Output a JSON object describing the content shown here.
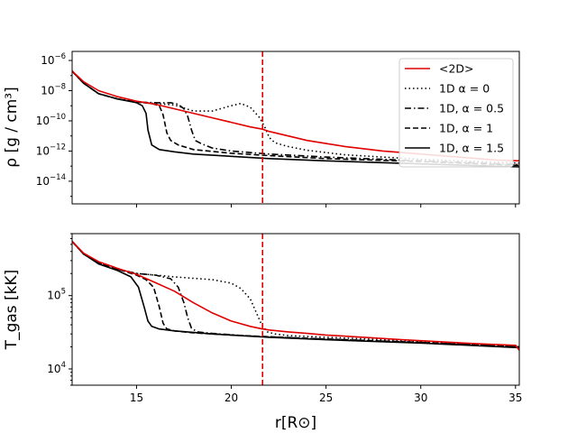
{
  "chart_data": {
    "type": "line",
    "xlabel": "r[R⊙]",
    "xlim": [
      11.6,
      35.2
    ],
    "x_ticks": [
      15,
      20,
      25,
      30,
      35
    ],
    "reference_line": {
      "x": 21.65,
      "color": "#e00000",
      "style": "dashed"
    },
    "colors": {
      "red": "#e00000",
      "black": "#000000"
    },
    "legend": {
      "placement": "top-right",
      "entries": [
        {
          "label": "<2D>",
          "color": "#e00000",
          "style": "solid"
        },
        {
          "label": "1D α = 0",
          "color": "#000000",
          "style": "dotted"
        },
        {
          "label": "1D, α = 0.5",
          "color": "#000000",
          "style": "dashdot"
        },
        {
          "label": "1D, α = 1",
          "color": "#000000",
          "style": "dashed"
        },
        {
          "label": "1D, α = 1.5",
          "color": "#000000",
          "style": "solid"
        }
      ]
    },
    "panels": [
      {
        "name": "density",
        "ylabel": "ρ [g / cm³]",
        "yscale": "log",
        "ylim_log10": [
          -15.5,
          -5.4
        ],
        "y_tick_exponents": [
          -6,
          -8,
          -10,
          -12,
          -14
        ],
        "series": [
          {
            "name": "<2D>",
            "color": "#e00000",
            "style": "solid",
            "x": [
              11.6,
              12.2,
              13,
              14,
              15,
              16,
              17,
              18,
              19,
              20,
              21,
              21.65,
              22,
              23,
              24,
              25,
              26,
              27,
              28,
              29,
              30,
              31,
              32,
              33,
              34,
              35.2
            ],
            "log10_y": [
              -6.7,
              -7.4,
              -8.0,
              -8.4,
              -8.7,
              -8.9,
              -9.2,
              -9.5,
              -9.8,
              -10.1,
              -10.4,
              -10.55,
              -10.7,
              -11.0,
              -11.3,
              -11.5,
              -11.7,
              -11.85,
              -12.0,
              -12.1,
              -12.2,
              -12.3,
              -12.4,
              -12.5,
              -12.6,
              -12.65
            ]
          },
          {
            "name": "1D α = 0",
            "color": "#000000",
            "style": "dotted",
            "x": [
              11.6,
              12.2,
              13,
              14,
              15,
              16,
              17,
              18,
              19,
              20,
              20.5,
              21,
              21.5,
              21.8,
              22,
              22.3,
              22.7,
              23,
              24,
              25,
              26,
              28,
              30,
              32,
              34,
              35.2
            ],
            "log10_y": [
              -6.7,
              -7.5,
              -8.2,
              -8.55,
              -8.75,
              -8.85,
              -8.95,
              -9.35,
              -9.35,
              -9.0,
              -8.85,
              -9.1,
              -9.8,
              -10.5,
              -11.1,
              -11.45,
              -11.6,
              -11.7,
              -11.95,
              -12.1,
              -12.25,
              -12.4,
              -12.55,
              -12.65,
              -12.75,
              -12.8
            ]
          },
          {
            "name": "1D, α = 0.5",
            "color": "#000000",
            "style": "dashdot",
            "x": [
              11.6,
              12.2,
              13,
              14,
              15,
              16,
              16.8,
              17.2,
              17.5,
              17.7,
              17.9,
              18.1,
              18.4,
              19,
              20,
              22,
              25,
              30,
              35.2
            ],
            "log10_y": [
              -6.7,
              -7.5,
              -8.2,
              -8.55,
              -8.75,
              -8.8,
              -8.8,
              -8.9,
              -9.2,
              -9.7,
              -10.6,
              -11.3,
              -11.5,
              -11.8,
              -12.0,
              -12.2,
              -12.4,
              -12.65,
              -12.9
            ]
          },
          {
            "name": "1D, α = 1",
            "color": "#000000",
            "style": "dashed",
            "x": [
              11.6,
              12.2,
              13,
              14,
              15,
              15.8,
              16.2,
              16.4,
              16.6,
              16.8,
              17.2,
              18,
              20,
              22,
              25,
              30,
              35.2
            ],
            "log10_y": [
              -6.7,
              -7.5,
              -8.2,
              -8.55,
              -8.75,
              -8.85,
              -9.0,
              -9.6,
              -10.8,
              -11.3,
              -11.6,
              -11.9,
              -12.15,
              -12.3,
              -12.5,
              -12.7,
              -12.95
            ]
          },
          {
            "name": "1D, α = 1.5",
            "color": "#000000",
            "style": "solid",
            "x": [
              11.6,
              12.2,
              13,
              14,
              15,
              15.3,
              15.5,
              15.6,
              15.8,
              16.2,
              17,
              18,
              20,
              22,
              25,
              30,
              35.2
            ],
            "log10_y": [
              -6.7,
              -7.5,
              -8.2,
              -8.55,
              -8.8,
              -9.0,
              -9.5,
              -10.6,
              -11.6,
              -11.9,
              -12.05,
              -12.2,
              -12.35,
              -12.5,
              -12.65,
              -12.85,
              -13.05
            ]
          }
        ]
      },
      {
        "name": "temperature",
        "ylabel": "T_gas [kK]",
        "yscale": "log",
        "ylim": [
          6000,
          700000
        ],
        "y_ticks": [
          {
            "value": 100000,
            "base": "10",
            "exp": "5"
          },
          {
            "value": 10000,
            "base": "10",
            "exp": "4"
          }
        ],
        "series": [
          {
            "name": "<2D>",
            "color": "#e00000",
            "style": "solid",
            "x": [
              11.6,
              12.2,
              13,
              14,
              15,
              16,
              17,
              18,
              19,
              20,
              21,
              21.65,
              22,
              23,
              24,
              25,
              27,
              29,
              31,
              33,
              35,
              35.2
            ],
            "y": [
              550000,
              380000,
              290000,
              235000,
              195000,
              150000,
              115000,
              80000,
              58000,
              45000,
              38000,
              35000,
              34000,
              32000,
              30500,
              29000,
              27000,
              25000,
              23500,
              22000,
              21000,
              18000
            ]
          },
          {
            "name": "1D α = 0",
            "color": "#000000",
            "style": "dotted",
            "x": [
              11.6,
              12.2,
              13,
              14,
              15,
              16,
              17,
              18,
              19,
              20,
              20.5,
              21,
              21.3,
              21.6,
              21.9,
              22.3,
              23,
              25,
              28,
              31,
              35.2
            ],
            "y": [
              550000,
              370000,
              280000,
              230000,
              200000,
              190000,
              180000,
              172000,
              165000,
              148000,
              125000,
              90000,
              60000,
              40000,
              32000,
              30000,
              28500,
              27000,
              25000,
              23000,
              20000
            ]
          },
          {
            "name": "1D, α = 0.5",
            "color": "#000000",
            "style": "dashdot",
            "x": [
              11.6,
              12.2,
              13,
              14,
              15,
              16,
              16.8,
              17.2,
              17.5,
              17.7,
              17.9,
              18.2,
              19,
              21,
              25,
              30,
              35.2
            ],
            "y": [
              550000,
              370000,
              280000,
              230000,
              200000,
              190000,
              170000,
              130000,
              80000,
              50000,
              36000,
              32000,
              30500,
              28000,
              25500,
              23000,
              20000
            ]
          },
          {
            "name": "1D, α = 1",
            "color": "#000000",
            "style": "dashed",
            "x": [
              11.6,
              12.2,
              13,
              14,
              15,
              15.5,
              15.9,
              16.2,
              16.4,
              16.6,
              17,
              18,
              20,
              22,
              25,
              30,
              35.2
            ],
            "y": [
              550000,
              370000,
              280000,
              230000,
              190000,
              165000,
              130000,
              70000,
              42000,
              35000,
              33000,
              31000,
              29000,
              27500,
              25500,
              23000,
              20000
            ]
          },
          {
            "name": "1D, α = 1.5",
            "color": "#000000",
            "style": "solid",
            "x": [
              11.6,
              12.2,
              13,
              14,
              14.7,
              15.1,
              15.4,
              15.6,
              15.8,
              16.2,
              17,
              19,
              22,
              25,
              30,
              35.2
            ],
            "y": [
              550000,
              370000,
              270000,
              220000,
              180000,
              130000,
              70000,
              45000,
              38000,
              35000,
              33000,
              30000,
              27000,
              25000,
              22500,
              19500
            ]
          }
        ]
      }
    ]
  }
}
